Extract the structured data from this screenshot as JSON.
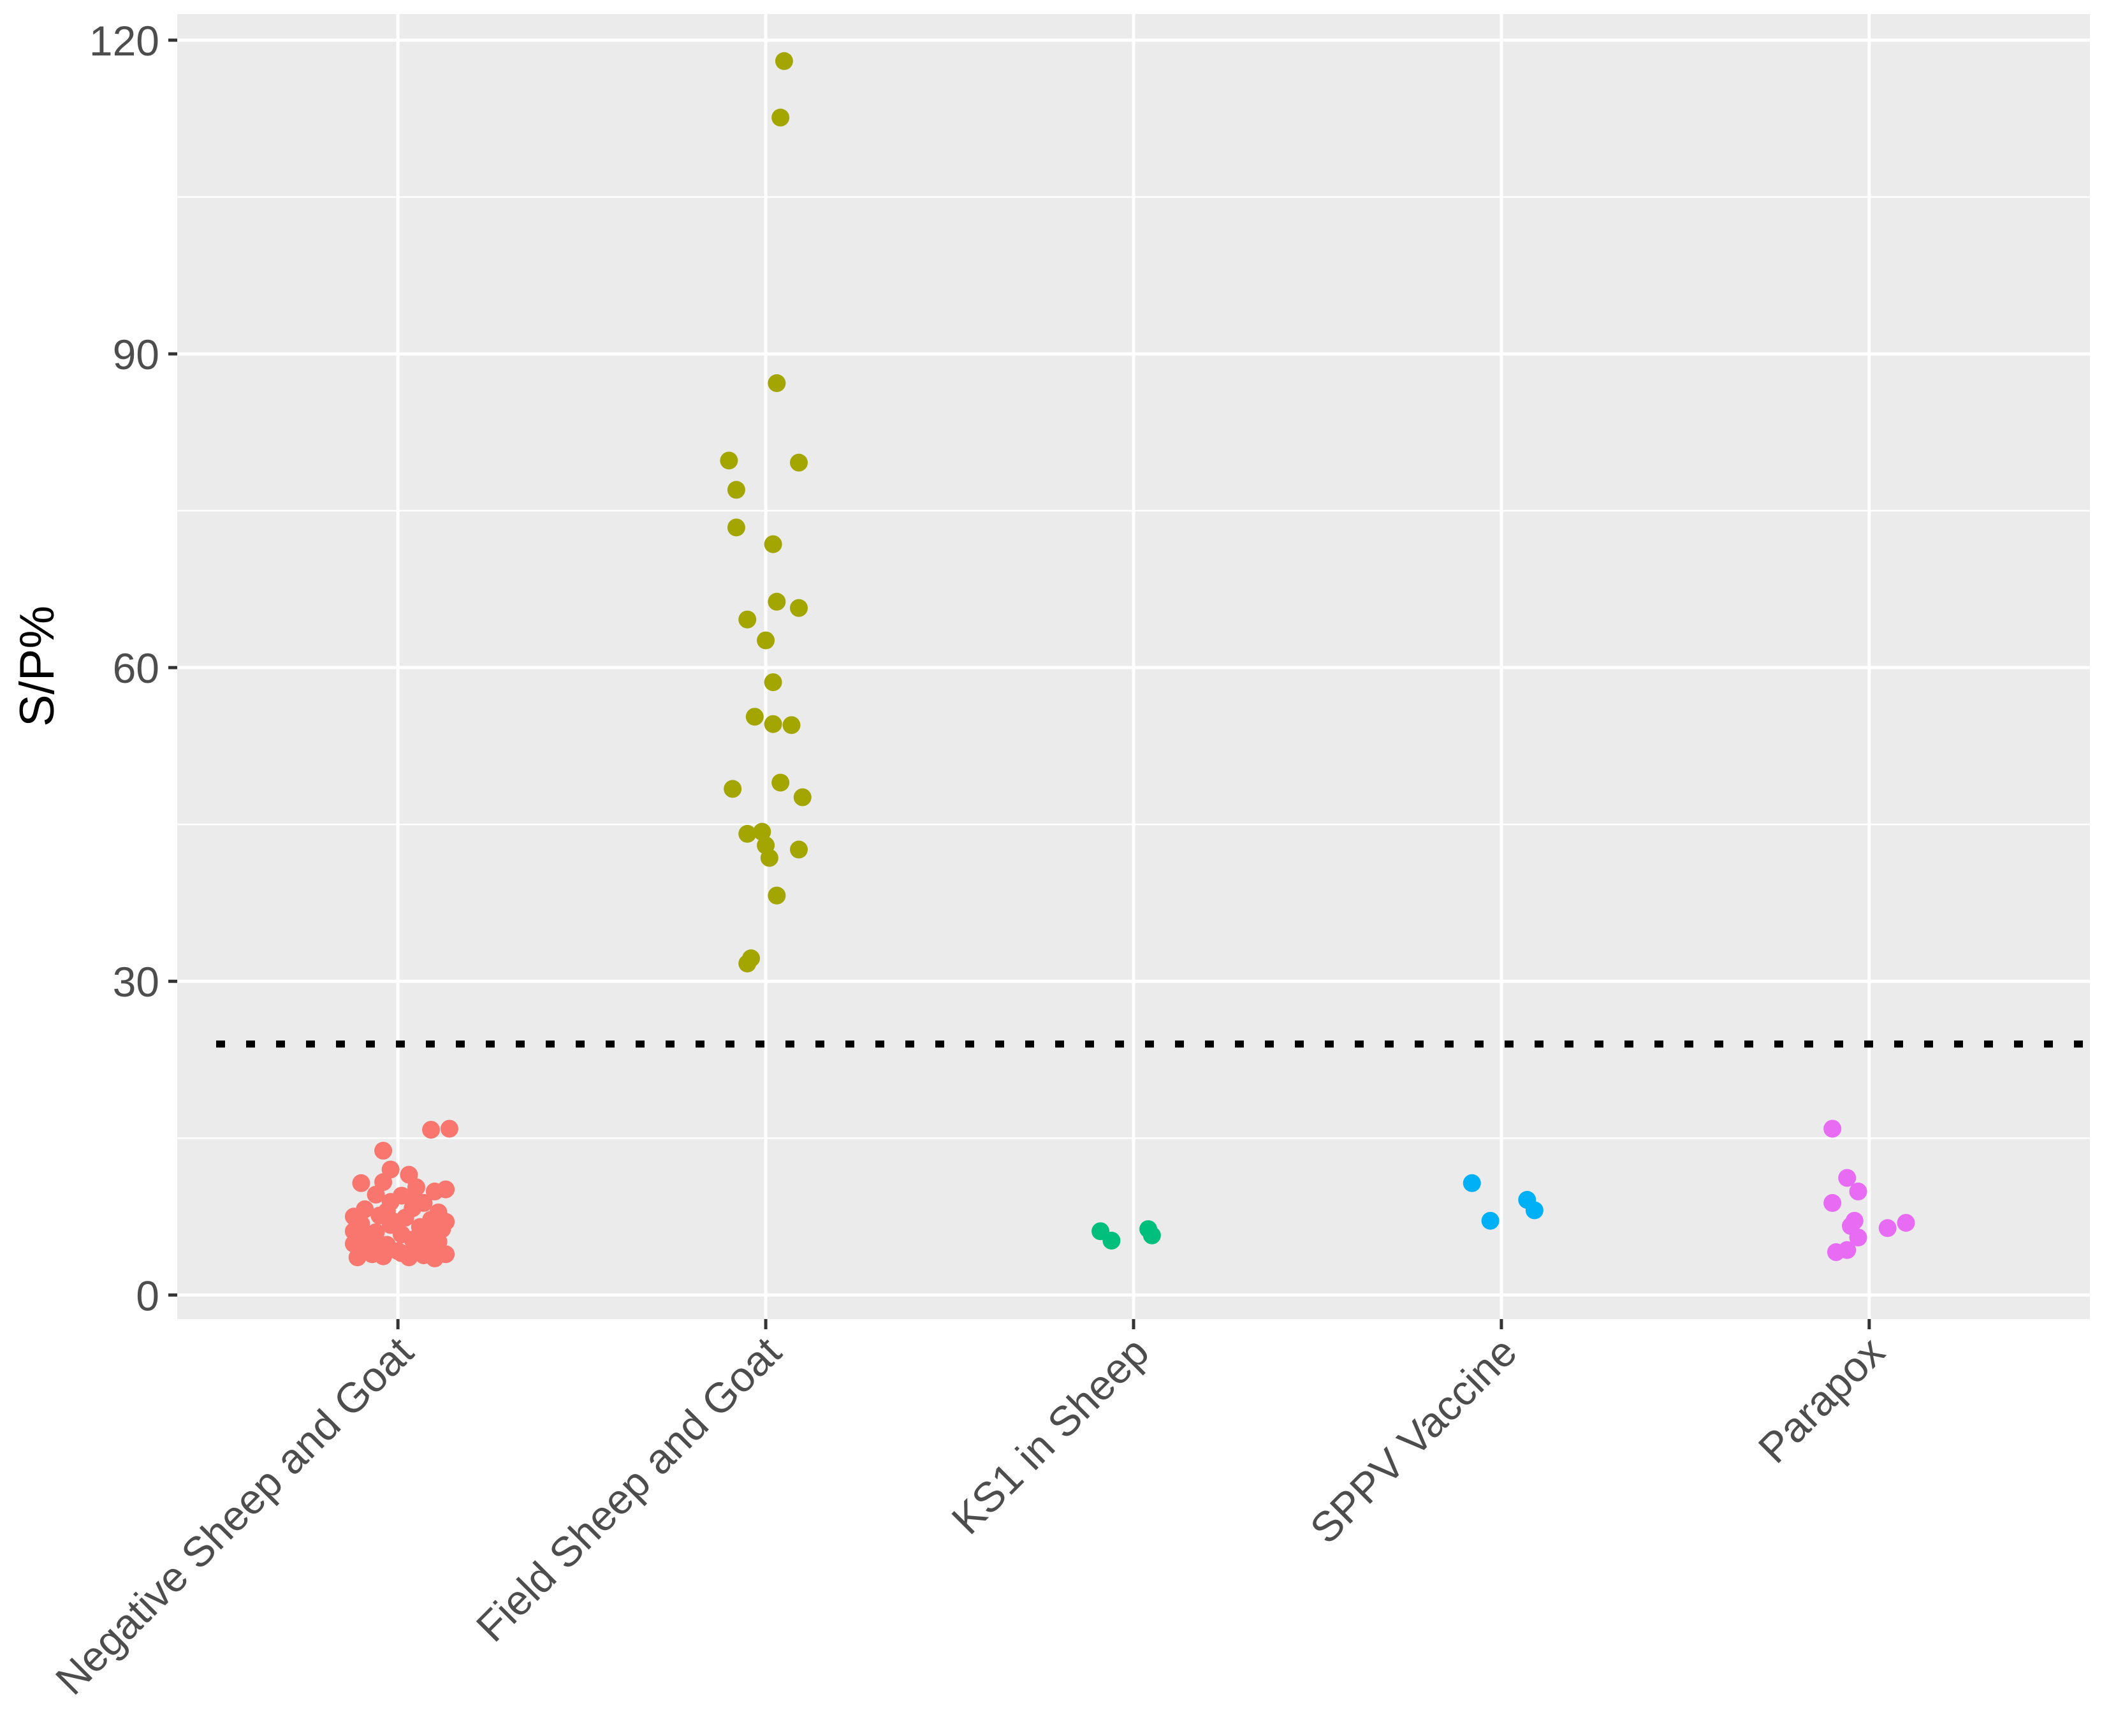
{
  "chart_data": {
    "type": "scatter",
    "subtype": "jitter-strip",
    "title": "",
    "xlabel": "",
    "ylabel": "S/P%",
    "ylim": [
      -2.3,
      122.5
    ],
    "yticks": [
      0,
      30,
      60,
      90,
      120
    ],
    "grid": true,
    "legend": "none",
    "cutoff_line": {
      "y": 24,
      "style": "dotted",
      "color": "#000000"
    },
    "categories": [
      "Negative Sheep and Goat",
      "Field Sheep and Goat",
      "KS1 in Sheep",
      "SPPV Vaccine",
      "Parapox"
    ],
    "colors": [
      "#F8766D",
      "#A3A500",
      "#00BF7D",
      "#00B0F6",
      "#E76BF3"
    ],
    "series": [
      {
        "name": "Negative Sheep and Goat",
        "points": [
          {
            "dx": 0.14,
            "y": 15.9
          },
          {
            "dx": 0.09,
            "y": 15.8
          },
          {
            "dx": -0.04,
            "y": 13.8
          },
          {
            "dx": -0.02,
            "y": 12.0
          },
          {
            "dx": 0.03,
            "y": 11.5
          },
          {
            "dx": -0.1,
            "y": 10.7
          },
          {
            "dx": -0.04,
            "y": 10.8
          },
          {
            "dx": 0.05,
            "y": 10.3
          },
          {
            "dx": 0.1,
            "y": 9.9
          },
          {
            "dx": 0.13,
            "y": 10.1
          },
          {
            "dx": -0.06,
            "y": 9.6
          },
          {
            "dx": 0.01,
            "y": 9.5
          },
          {
            "dx": -0.02,
            "y": 8.9
          },
          {
            "dx": 0.07,
            "y": 8.8
          },
          {
            "dx": -0.09,
            "y": 8.2
          },
          {
            "dx": 0.04,
            "y": 8.3
          },
          {
            "dx": 0.11,
            "y": 7.9
          },
          {
            "dx": -0.12,
            "y": 7.5
          },
          {
            "dx": -0.05,
            "y": 7.6
          },
          {
            "dx": 0.02,
            "y": 7.4
          },
          {
            "dx": 0.09,
            "y": 7.2
          },
          {
            "dx": 0.13,
            "y": 7.0
          },
          {
            "dx": -0.1,
            "y": 6.8
          },
          {
            "dx": -0.02,
            "y": 6.7
          },
          {
            "dx": 0.06,
            "y": 6.5
          },
          {
            "dx": 0.12,
            "y": 6.3
          },
          {
            "dx": -0.12,
            "y": 6.1
          },
          {
            "dx": -0.06,
            "y": 6.0
          },
          {
            "dx": 0.01,
            "y": 5.8
          },
          {
            "dx": 0.08,
            "y": 5.7
          },
          {
            "dx": -0.09,
            "y": 5.4
          },
          {
            "dx": 0.04,
            "y": 5.3
          },
          {
            "dx": 0.11,
            "y": 5.1
          },
          {
            "dx": -0.12,
            "y": 4.9
          },
          {
            "dx": -0.03,
            "y": 4.8
          },
          {
            "dx": 0.05,
            "y": 4.6
          },
          {
            "dx": 0.09,
            "y": 4.5
          },
          {
            "dx": -0.08,
            "y": 4.3
          },
          {
            "dx": 0.0,
            "y": 4.2
          },
          {
            "dx": 0.13,
            "y": 3.9
          },
          {
            "dx": -0.11,
            "y": 3.6
          },
          {
            "dx": -0.04,
            "y": 3.7
          },
          {
            "dx": 0.03,
            "y": 3.6
          },
          {
            "dx": 0.07,
            "y": 3.8
          },
          {
            "dx": 0.1,
            "y": 3.5
          },
          {
            "dx": -0.07,
            "y": 3.9
          },
          {
            "dx": 0.01,
            "y": 4.0
          },
          {
            "dx": -0.01,
            "y": 7.0
          },
          {
            "dx": 0.04,
            "y": 9.2
          },
          {
            "dx": -0.06,
            "y": 5.2
          },
          {
            "dx": 0.08,
            "y": 6.0
          },
          {
            "dx": -0.03,
            "y": 8.0
          }
        ]
      },
      {
        "name": "Field Sheep and Goat",
        "points": [
          {
            "dx": 0.05,
            "y": 118.0
          },
          {
            "dx": 0.04,
            "y": 112.6
          },
          {
            "dx": 0.03,
            "y": 87.2
          },
          {
            "dx": -0.1,
            "y": 79.8
          },
          {
            "dx": 0.09,
            "y": 79.6
          },
          {
            "dx": -0.08,
            "y": 77.0
          },
          {
            "dx": -0.08,
            "y": 73.4
          },
          {
            "dx": 0.02,
            "y": 71.8
          },
          {
            "dx": 0.03,
            "y": 66.3
          },
          {
            "dx": 0.09,
            "y": 65.7
          },
          {
            "dx": -0.05,
            "y": 64.6
          },
          {
            "dx": 0.0,
            "y": 62.6
          },
          {
            "dx": 0.02,
            "y": 58.6
          },
          {
            "dx": -0.03,
            "y": 55.3
          },
          {
            "dx": 0.02,
            "y": 54.6
          },
          {
            "dx": 0.07,
            "y": 54.5
          },
          {
            "dx": 0.04,
            "y": 49.0
          },
          {
            "dx": -0.09,
            "y": 48.4
          },
          {
            "dx": 0.1,
            "y": 47.6
          },
          {
            "dx": -0.05,
            "y": 44.1
          },
          {
            "dx": -0.01,
            "y": 44.3
          },
          {
            "dx": 0.0,
            "y": 43.0
          },
          {
            "dx": 0.09,
            "y": 42.6
          },
          {
            "dx": 0.01,
            "y": 41.8
          },
          {
            "dx": 0.03,
            "y": 38.2
          },
          {
            "dx": -0.04,
            "y": 32.2
          },
          {
            "dx": -0.05,
            "y": 31.7
          }
        ]
      },
      {
        "name": "KS1 in Sheep",
        "points": [
          {
            "dx": -0.09,
            "y": 6.1
          },
          {
            "dx": -0.06,
            "y": 5.2
          },
          {
            "dx": 0.04,
            "y": 6.3
          },
          {
            "dx": 0.05,
            "y": 5.7
          }
        ]
      },
      {
        "name": "SPPV Vaccine",
        "points": [
          {
            "dx": -0.08,
            "y": 10.7
          },
          {
            "dx": -0.03,
            "y": 7.1
          },
          {
            "dx": 0.07,
            "y": 9.1
          },
          {
            "dx": 0.09,
            "y": 8.1
          }
        ]
      },
      {
        "name": "Parapox",
        "points": [
          {
            "dx": -0.1,
            "y": 15.9
          },
          {
            "dx": -0.06,
            "y": 11.2
          },
          {
            "dx": -0.03,
            "y": 9.9
          },
          {
            "dx": -0.1,
            "y": 8.8
          },
          {
            "dx": -0.04,
            "y": 7.1
          },
          {
            "dx": -0.05,
            "y": 6.6
          },
          {
            "dx": 0.05,
            "y": 6.4
          },
          {
            "dx": 0.1,
            "y": 6.9
          },
          {
            "dx": -0.03,
            "y": 5.5
          },
          {
            "dx": -0.09,
            "y": 4.1
          },
          {
            "dx": -0.06,
            "y": 4.3
          }
        ]
      }
    ]
  }
}
